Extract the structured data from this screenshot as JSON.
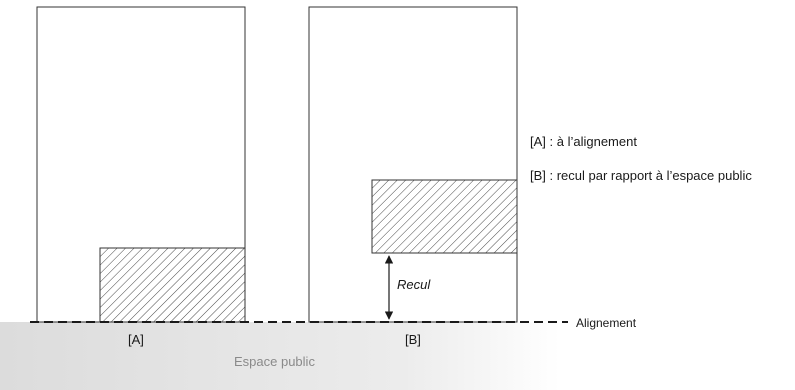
{
  "legend": {
    "a": "[A] : à l’alignement",
    "b": "[B] : recul par rapport à l’espace public"
  },
  "labels": {
    "a": "[A]",
    "b": "[B]",
    "recul": "Recul",
    "alignement": "Alignement",
    "espace_public": "Espace public"
  },
  "colors": {
    "stroke": "#333333",
    "public_space_start": "#dcdcdc",
    "public_space_end": "#ffffff"
  }
}
